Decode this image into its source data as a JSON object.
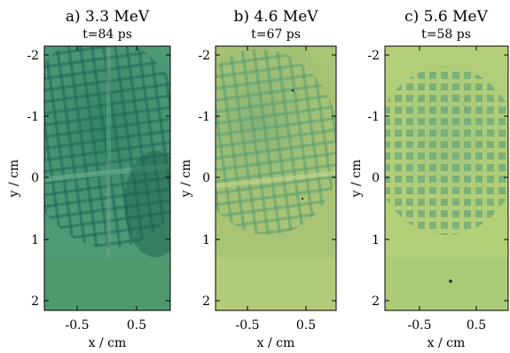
{
  "figure": {
    "ylabel": "y / cm",
    "xlabel": "x / cm",
    "y_ticks": [
      "-2",
      "-1",
      "0",
      "1",
      "2"
    ],
    "x_ticks": [
      "-0.5",
      "0.5"
    ],
    "panels": [
      {
        "title": "a) 3.3 MeV",
        "subtitle": "t=84 ps",
        "film_color": "#4f9a78",
        "dark_color": "#1f6b54"
      },
      {
        "title": "b) 4.6 MeV",
        "subtitle": "t=67 ps",
        "film_color": "#a8c474",
        "dark_color": "#6ea86e"
      },
      {
        "title": "c) 5.6 MeV",
        "subtitle": "t=58 ps",
        "film_color": "#b5cf78",
        "dark_color": "#7fb478"
      }
    ]
  }
}
